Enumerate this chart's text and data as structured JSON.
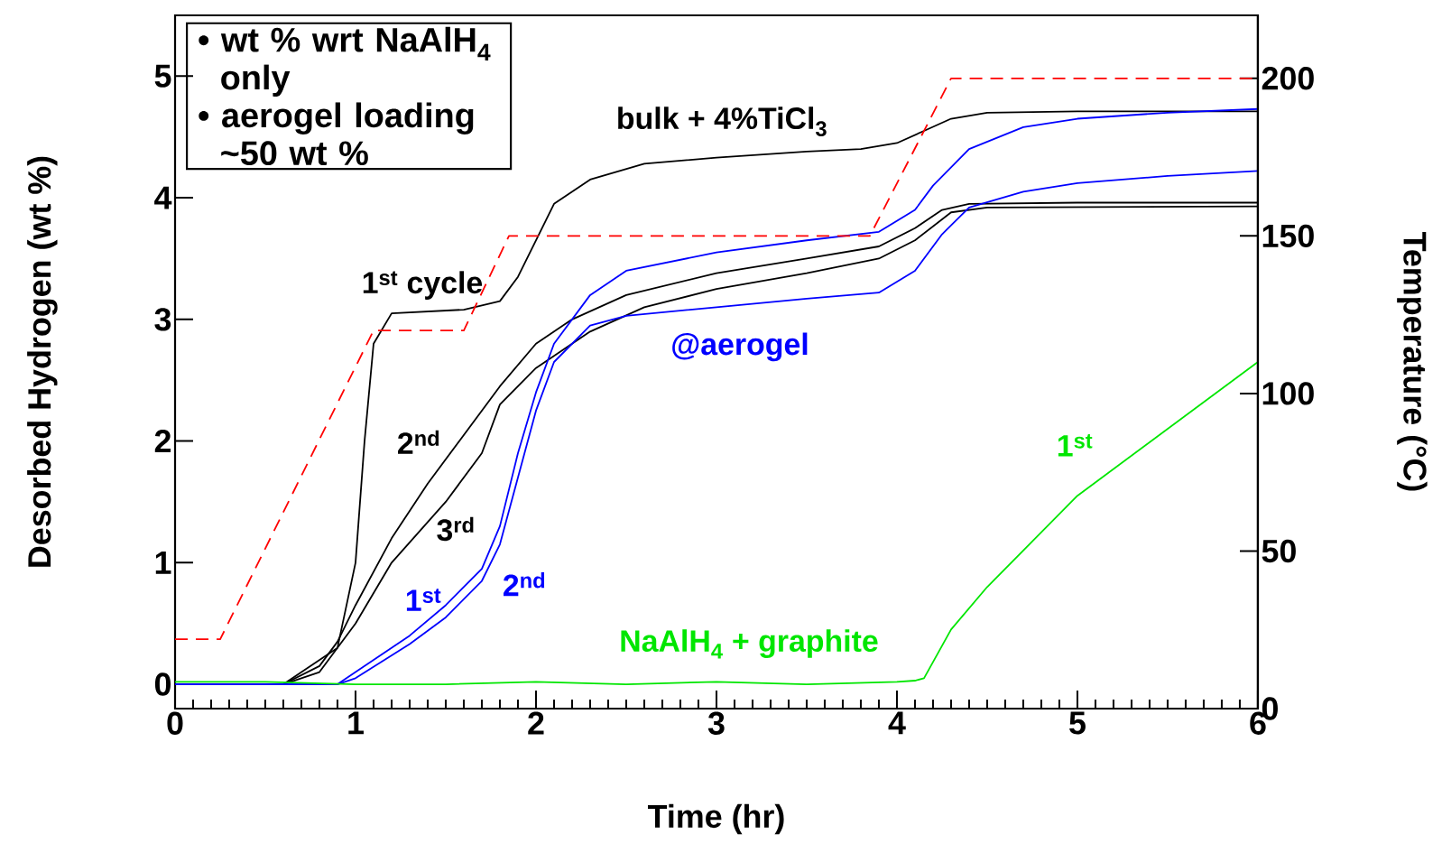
{
  "chart_data": {
    "type": "line",
    "xlabel": "Time (hr)",
    "ylabel": "Desorbed Hydrogen   (wt %)",
    "y2label": "Temperature  (°C)",
    "xlim": [
      0,
      6
    ],
    "xticks": [
      0,
      1,
      2,
      3,
      4,
      5,
      6
    ],
    "ylim": [
      -0.2,
      5.5
    ],
    "yticks": [
      0,
      1,
      2,
      3,
      4,
      5
    ],
    "y2lim": [
      0,
      220
    ],
    "y2ticks": [
      0,
      50,
      100,
      150,
      200
    ],
    "series": [
      {
        "color": "#000000",
        "x": [
          0,
          0.6,
          0.9,
          1.0,
          1.05,
          1.1,
          1.2,
          1.6,
          1.8,
          1.9,
          2.0,
          2.1,
          2.3,
          2.6,
          3.0,
          3.5,
          3.8,
          4.0,
          4.15,
          4.3,
          4.5,
          5.0,
          6.0
        ],
        "values": [
          0,
          0,
          0.3,
          1.0,
          2.0,
          2.8,
          3.05,
          3.08,
          3.15,
          3.35,
          3.65,
          3.95,
          4.15,
          4.28,
          4.33,
          4.38,
          4.4,
          4.45,
          4.55,
          4.65,
          4.7,
          4.71,
          4.71
        ]
      },
      {
        "color": "#000000",
        "x": [
          0,
          0.6,
          0.8,
          0.9,
          1.0,
          1.2,
          1.4,
          1.6,
          1.8,
          2.0,
          2.2,
          2.5,
          3.0,
          3.5,
          3.9,
          4.1,
          4.25,
          4.4,
          5.0,
          6.0
        ],
        "values": [
          0,
          0,
          0.15,
          0.35,
          0.65,
          1.2,
          1.65,
          2.05,
          2.45,
          2.8,
          3.0,
          3.2,
          3.38,
          3.5,
          3.6,
          3.75,
          3.9,
          3.95,
          3.96,
          3.96
        ]
      },
      {
        "color": "#000000",
        "x": [
          0,
          0.6,
          0.8,
          1.0,
          1.2,
          1.5,
          1.7,
          1.8,
          2.0,
          2.3,
          2.6,
          3.0,
          3.5,
          3.9,
          4.1,
          4.3,
          4.5,
          6.0
        ],
        "values": [
          0,
          0,
          0.1,
          0.5,
          1.0,
          1.5,
          1.9,
          2.3,
          2.6,
          2.9,
          3.1,
          3.25,
          3.38,
          3.5,
          3.65,
          3.88,
          3.92,
          3.93
        ]
      },
      {
        "color": "#0000ff",
        "x": [
          0,
          0.9,
          1.0,
          1.3,
          1.5,
          1.7,
          1.8,
          1.9,
          2.0,
          2.1,
          2.3,
          2.5,
          3.0,
          3.5,
          3.9,
          4.1,
          4.2,
          4.4,
          4.7,
          5.0,
          5.5,
          6.0
        ],
        "values": [
          0,
          0,
          0.1,
          0.4,
          0.65,
          0.95,
          1.3,
          1.9,
          2.4,
          2.8,
          3.2,
          3.4,
          3.55,
          3.65,
          3.72,
          3.9,
          4.1,
          4.4,
          4.58,
          4.65,
          4.7,
          4.73
        ]
      },
      {
        "color": "#0000ff",
        "x": [
          0,
          0.9,
          1.0,
          1.3,
          1.5,
          1.7,
          1.8,
          1.9,
          2.0,
          2.1,
          2.3,
          2.5,
          3.0,
          3.5,
          3.9,
          4.1,
          4.25,
          4.4,
          4.7,
          5.0,
          5.5,
          6.0
        ],
        "values": [
          0,
          0,
          0.05,
          0.33,
          0.55,
          0.85,
          1.15,
          1.7,
          2.25,
          2.65,
          2.95,
          3.03,
          3.1,
          3.17,
          3.22,
          3.4,
          3.7,
          3.92,
          4.05,
          4.12,
          4.18,
          4.22
        ]
      },
      {
        "color": "#00e600",
        "x": [
          0,
          0.5,
          1.0,
          1.5,
          2.0,
          2.5,
          3.0,
          3.5,
          4.0,
          4.1,
          4.15,
          4.3,
          4.5,
          5.0,
          5.5,
          6.0
        ],
        "values": [
          0.02,
          0.02,
          0.0,
          0.0,
          0.02,
          0.0,
          0.02,
          0.0,
          0.02,
          0.03,
          0.05,
          0.45,
          0.8,
          1.55,
          2.1,
          2.65
        ]
      },
      {
        "color": "#ff0000",
        "axis": "y2",
        "line_style": "dashed",
        "x": [
          0,
          0.25,
          1.1,
          1.6,
          1.85,
          3.85,
          4.3,
          6.0
        ],
        "values": [
          22,
          22,
          120,
          120,
          150,
          150,
          200,
          200
        ]
      }
    ],
    "annotations": [
      "• wt % wrt NaAlH$_{4}$ only",
      "• aerogel loading ~50 wt %",
      {
        "text": "bulk + 4%TiCl$_{3}$",
        "x": 3.0,
        "y": 4.33
      },
      {
        "text": "1$^{st}$ cycle",
        "x": 1.2,
        "y": 3.05
      },
      {
        "text": "2$^{nd}$",
        "x": 1.4,
        "y": 1.65
      },
      {
        "text": "3$^{rd}$",
        "x": 1.5,
        "y": 1.5
      },
      {
        "text": "1$^{st}$",
        "x": 1.5,
        "y": 0.65
      },
      {
        "text": "2$^{nd}$",
        "x": 1.8,
        "y": 1.15
      },
      {
        "text": "@aerogel",
        "x": 3.0,
        "y": 3.1
      },
      {
        "text": "NaAlH$_{4}$ + graphite",
        "x": 3.0,
        "y": 0.02
      },
      {
        "text": "1$^{st}$",
        "x": 5.0,
        "y": 1.55
      }
    ]
  }
}
